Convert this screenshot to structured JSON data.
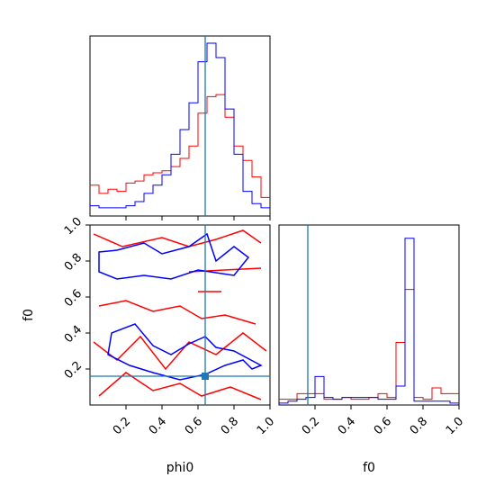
{
  "chart_data": {
    "type": "corner",
    "parameters": [
      "phi0",
      "f0"
    ],
    "truth": {
      "phi0": 0.64,
      "f0": 0.16
    },
    "colors": {
      "blue": "#0000ff",
      "red": "#ff0000",
      "truth": "#1f77b4"
    },
    "xlim": [
      0,
      1
    ],
    "ylim": [
      0,
      1
    ],
    "ticks": [
      0.2,
      0.4,
      0.6,
      0.8,
      1.0
    ],
    "tick_labels": [
      "0.2",
      "0.4",
      "0.6",
      "0.8",
      "1.0"
    ],
    "xlabel_left": "phi0",
    "xlabel_right": "f0",
    "ylabel_left": "f0",
    "phi0_hist": {
      "bins": 20,
      "range": [
        0,
        1
      ],
      "blue": [
        0.05,
        0.04,
        0.04,
        0.04,
        0.05,
        0.07,
        0.11,
        0.15,
        0.2,
        0.3,
        0.42,
        0.55,
        0.75,
        0.84,
        0.77,
        0.52,
        0.3,
        0.12,
        0.06,
        0.04
      ],
      "red": [
        0.15,
        0.11,
        0.13,
        0.12,
        0.16,
        0.17,
        0.2,
        0.21,
        0.22,
        0.24,
        0.28,
        0.34,
        0.5,
        0.58,
        0.59,
        0.48,
        0.34,
        0.27,
        0.19,
        0.09
      ]
    },
    "f0_hist": {
      "bins": 20,
      "range": [
        0,
        1
      ],
      "blue": [
        0.01,
        0.02,
        0.03,
        0.04,
        0.15,
        0.04,
        0.03,
        0.04,
        0.04,
        0.04,
        0.04,
        0.03,
        0.03,
        0.1,
        0.88,
        0.02,
        0.02,
        0.02,
        0.02,
        0.01
      ],
      "red": [
        0.03,
        0.03,
        0.06,
        0.06,
        0.06,
        0.03,
        0.03,
        0.04,
        0.03,
        0.03,
        0.04,
        0.06,
        0.04,
        0.33,
        0.61,
        0.04,
        0.03,
        0.09,
        0.06,
        0.06
      ]
    },
    "joint_contours": {
      "blue": [
        [
          [
            0.05,
            0.85
          ],
          [
            0.15,
            0.86
          ],
          [
            0.3,
            0.9
          ],
          [
            0.4,
            0.84
          ],
          [
            0.55,
            0.88
          ],
          [
            0.65,
            0.95
          ],
          [
            0.7,
            0.8
          ],
          [
            0.8,
            0.88
          ],
          [
            0.88,
            0.82
          ],
          [
            0.8,
            0.72
          ],
          [
            0.6,
            0.75
          ],
          [
            0.45,
            0.7
          ],
          [
            0.3,
            0.72
          ],
          [
            0.15,
            0.7
          ],
          [
            0.05,
            0.74
          ]
        ],
        [
          [
            0.1,
            0.28
          ],
          [
            0.22,
            0.22
          ],
          [
            0.35,
            0.18
          ],
          [
            0.5,
            0.14
          ],
          [
            0.64,
            0.17
          ],
          [
            0.75,
            0.22
          ],
          [
            0.85,
            0.25
          ],
          [
            0.9,
            0.2
          ],
          [
            0.95,
            0.22
          ],
          [
            0.8,
            0.3
          ],
          [
            0.7,
            0.32
          ],
          [
            0.64,
            0.38
          ],
          [
            0.55,
            0.34
          ],
          [
            0.45,
            0.28
          ],
          [
            0.35,
            0.33
          ],
          [
            0.25,
            0.45
          ],
          [
            0.12,
            0.4
          ]
        ]
      ],
      "red": [
        [
          [
            0.02,
            0.95
          ],
          [
            0.18,
            0.88
          ],
          [
            0.4,
            0.93
          ],
          [
            0.55,
            0.88
          ],
          [
            0.7,
            0.92
          ],
          [
            0.85,
            0.97
          ],
          [
            0.95,
            0.9
          ]
        ],
        [
          [
            0.05,
            0.55
          ],
          [
            0.2,
            0.58
          ],
          [
            0.35,
            0.52
          ],
          [
            0.5,
            0.55
          ],
          [
            0.62,
            0.48
          ],
          [
            0.75,
            0.5
          ],
          [
            0.92,
            0.45
          ]
        ],
        [
          [
            0.02,
            0.35
          ],
          [
            0.15,
            0.25
          ],
          [
            0.28,
            0.38
          ],
          [
            0.42,
            0.2
          ],
          [
            0.55,
            0.35
          ],
          [
            0.7,
            0.28
          ],
          [
            0.85,
            0.4
          ],
          [
            0.98,
            0.3
          ]
        ],
        [
          [
            0.05,
            0.05
          ],
          [
            0.2,
            0.18
          ],
          [
            0.35,
            0.08
          ],
          [
            0.5,
            0.12
          ],
          [
            0.62,
            0.05
          ],
          [
            0.78,
            0.1
          ],
          [
            0.95,
            0.03
          ]
        ],
        [
          [
            0.6,
            0.63
          ],
          [
            0.73,
            0.63
          ]
        ],
        [
          [
            0.55,
            0.74
          ],
          [
            0.95,
            0.76
          ]
        ]
      ]
    }
  }
}
